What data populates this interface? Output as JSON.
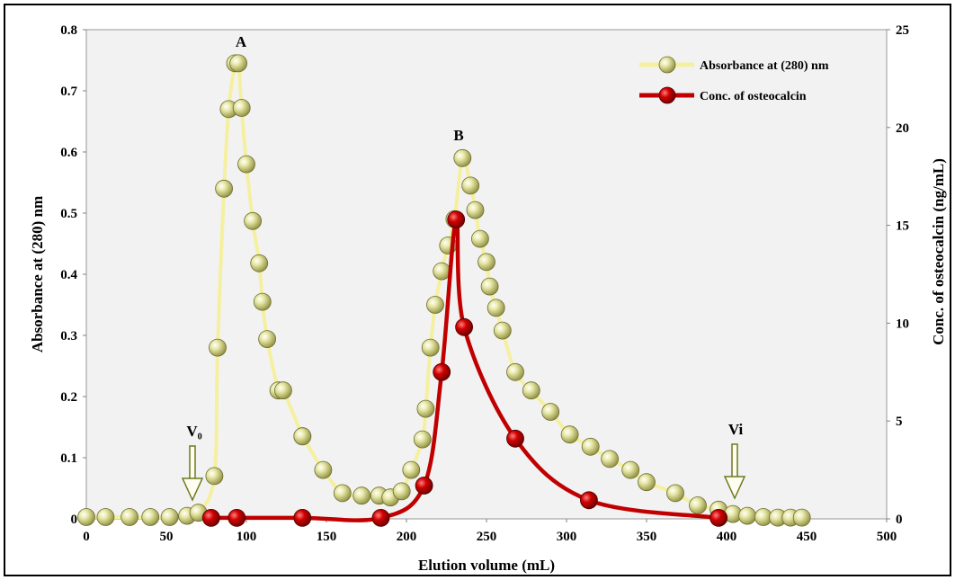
{
  "chart_data": {
    "type": "line",
    "xlabel": "Elution volume (mL)",
    "ylabel": "Absorbance at (280) nm",
    "y2label": "Conc. of osteocalcin (ng/mL)",
    "xlim": [
      0,
      500
    ],
    "ylim": [
      0,
      0.8
    ],
    "y2lim": [
      0,
      25
    ],
    "xticks": [
      "0",
      "50",
      "100",
      "150",
      "200",
      "250",
      "300",
      "350",
      "400",
      "450",
      "500"
    ],
    "yticks": [
      "0",
      "0.1",
      "0.2",
      "0.3",
      "0.4",
      "0.5",
      "0.6",
      "0.7",
      "0.8"
    ],
    "y2ticks": [
      "0",
      "5",
      "10",
      "15",
      "20",
      "25"
    ],
    "grid": false,
    "legend_position": "top-right",
    "colors": {
      "absorbance_line": "#f5f0a0",
      "absorbance_marker": "#c8c870",
      "conc_line": "#c00000",
      "conc_marker": "#b00000",
      "plot_bg": "#f2f2f2",
      "arrow": "#6b7a1e"
    },
    "series": [
      {
        "name": "Absorbance at (280) nm",
        "axis": "left",
        "x": [
          0,
          12,
          27,
          40,
          52,
          63,
          70,
          80,
          82,
          86,
          89,
          93,
          95,
          97,
          100,
          104,
          108,
          110,
          113,
          120,
          123,
          135,
          135,
          148,
          160,
          172,
          183,
          190,
          197,
          203,
          210,
          212,
          215,
          218,
          222,
          226,
          230,
          235,
          240,
          243,
          246,
          250,
          252,
          256,
          260,
          268,
          278,
          290,
          302,
          315,
          327,
          340,
          350,
          368,
          382,
          395,
          404,
          413,
          423,
          432,
          440,
          447
        ],
        "y": [
          0.003,
          0.003,
          0.003,
          0.003,
          0.003,
          0.005,
          0.01,
          0.07,
          0.28,
          0.54,
          0.67,
          0.745,
          0.745,
          0.672,
          0.58,
          0.487,
          0.418,
          0.355,
          0.294,
          0.21,
          0.21,
          0.135,
          0.135,
          0.08,
          0.042,
          0.038,
          0.038,
          0.035,
          0.045,
          0.08,
          0.13,
          0.18,
          0.28,
          0.35,
          0.405,
          0.447,
          0.49,
          0.59,
          0.545,
          0.505,
          0.458,
          0.42,
          0.38,
          0.345,
          0.308,
          0.24,
          0.21,
          0.175,
          0.138,
          0.118,
          0.098,
          0.08,
          0.06,
          0.042,
          0.022,
          0.015,
          0.008,
          0.005,
          0.003,
          0.002,
          0.002,
          0.002
        ]
      },
      {
        "name": "Conc. of osteocalcin",
        "axis": "right",
        "x": [
          78,
          94,
          135,
          184,
          211,
          222,
          231,
          236,
          268,
          314,
          395
        ],
        "y": [
          0.05,
          0.05,
          0.05,
          0.05,
          1.7,
          7.5,
          15.3,
          9.8,
          4.1,
          0.95,
          0.05
        ]
      }
    ],
    "annotations": [
      "A",
      "B",
      "V₀",
      "Vi"
    ]
  }
}
